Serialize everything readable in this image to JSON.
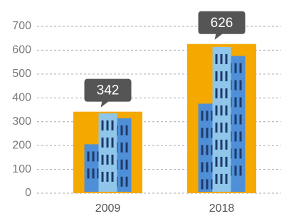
{
  "chart_data": {
    "type": "bar",
    "categories": [
      "2009",
      "2018"
    ],
    "values": [
      342,
      626
    ],
    "color": "#f5a800",
    "ylim": [
      0,
      700
    ],
    "yticks": [
      0,
      100,
      200,
      300,
      400,
      500,
      600,
      700
    ],
    "grid": true
  }
}
